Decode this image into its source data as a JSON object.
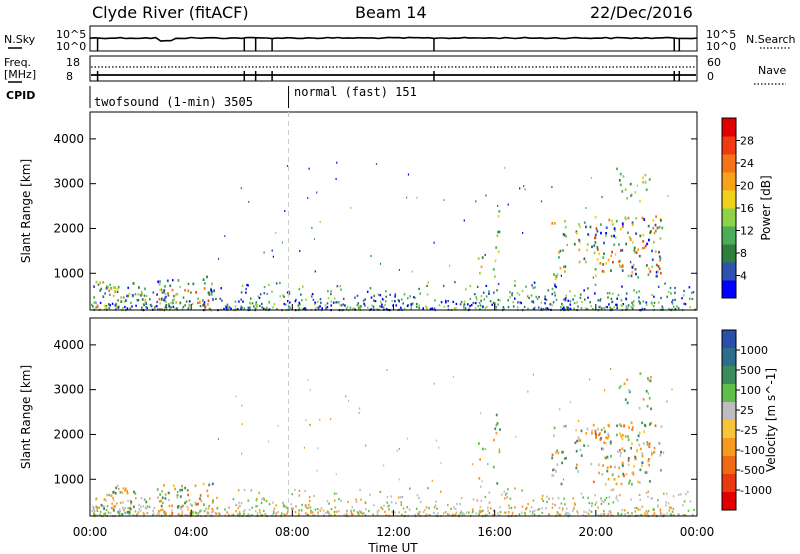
{
  "header": {
    "station": "Clyde River (fitACF)",
    "beam": "Beam 14",
    "date": "22/Dec/2016"
  },
  "status_panels": {
    "nsky_label": "N.Sky",
    "nsearch_label": "N.Search",
    "freq_label_line1": "Freq.",
    "freq_label_line2": "[MHz]",
    "nave_label": "Nave",
    "cpid_label": "CPID",
    "noise_ticks": [
      "10^5",
      "10^0"
    ],
    "freq_ticks": [
      "18",
      "8"
    ],
    "nave_ticks": [
      "60",
      "0"
    ],
    "cpid_segments": [
      {
        "label": "twofsound (1-min) 3505",
        "start_hour": 0,
        "end_hour": 7.85
      },
      {
        "label": "normal (fast) 151",
        "start_hour": 7.85,
        "end_hour": 24
      }
    ],
    "spike_hours": [
      0.3,
      6.1,
      6.55,
      7.2,
      13.6,
      23.1,
      23.3
    ]
  },
  "chart_data": [
    {
      "type": "heatmap",
      "name": "power",
      "ylabel": "Slant Range [km]",
      "xlabel": "",
      "yticks": [
        1000,
        2000,
        3000,
        4000
      ],
      "ylim": [
        180,
        4600
      ],
      "xlim_hours": [
        0,
        24
      ],
      "colorbar_label": "Power [dB]",
      "colorbar_ticks": [
        "28",
        "24",
        "20",
        "16",
        "12",
        "8",
        "4"
      ],
      "colorbar_colors": [
        "#0000ff",
        "#2d52b0",
        "#2e7e3f",
        "#4aae59",
        "#8fd24a",
        "#f2d11a",
        "#f7a31a",
        "#f5741a",
        "#f03a12",
        "#e00000"
      ],
      "clusters": [
        {
          "t0": 0.1,
          "t1": 2.2,
          "r0": 200,
          "r1": 850,
          "strength": 0.7
        },
        {
          "t0": 2.6,
          "t1": 4.9,
          "r0": 200,
          "r1": 950,
          "strength": 0.8
        },
        {
          "t0": 15.3,
          "t1": 15.5,
          "r0": 1000,
          "r1": 1900,
          "strength": 0.5
        },
        {
          "t0": 15.9,
          "t1": 16.2,
          "r0": 900,
          "r1": 2500,
          "strength": 0.5
        },
        {
          "t0": 18.2,
          "t1": 18.8,
          "r0": 900,
          "r1": 2300,
          "strength": 0.6
        },
        {
          "t0": 19.1,
          "t1": 19.8,
          "r0": 1200,
          "r1": 2200,
          "strength": 0.6
        },
        {
          "t0": 19.8,
          "t1": 22.6,
          "r0": 900,
          "r1": 2300,
          "strength": 0.85
        },
        {
          "t0": 20.8,
          "t1": 22.2,
          "r0": 2600,
          "r1": 3400,
          "strength": 0.4
        }
      ]
    },
    {
      "type": "heatmap",
      "name": "velocity",
      "ylabel": "Slant Range [km]",
      "xlabel": "Time UT",
      "yticks": [
        1000,
        2000,
        3000,
        4000
      ],
      "ylim": [
        180,
        4600
      ],
      "xlim_hours": [
        0,
        24
      ],
      "xticks": [
        "00:00",
        "04:00",
        "08:00",
        "12:00",
        "16:00",
        "20:00",
        "00:00"
      ],
      "colorbar_label": "Velocity [m s^-1]",
      "colorbar_ticks": [
        "1000",
        "500",
        "100",
        "25",
        "-25",
        "-100",
        "-500",
        "-1000"
      ],
      "colorbar_colors": [
        "#2b4ea8",
        "#2f6d8a",
        "#3b8c5c",
        "#5fbf4a",
        "#bdbdbd",
        "#f7c53a",
        "#f59a1c",
        "#f06a14",
        "#e83a0e",
        "#e00000"
      ],
      "clusters": [
        {
          "t0": 0.1,
          "t1": 2.2,
          "r0": 200,
          "r1": 850,
          "strength": 0.7
        },
        {
          "t0": 2.6,
          "t1": 4.9,
          "r0": 200,
          "r1": 950,
          "strength": 0.8
        },
        {
          "t0": 15.3,
          "t1": 15.5,
          "r0": 1000,
          "r1": 1900,
          "strength": 0.5
        },
        {
          "t0": 15.9,
          "t1": 16.2,
          "r0": 900,
          "r1": 2500,
          "strength": 0.5
        },
        {
          "t0": 18.2,
          "t1": 18.8,
          "r0": 900,
          "r1": 2300,
          "strength": 0.6
        },
        {
          "t0": 19.1,
          "t1": 19.8,
          "r0": 1200,
          "r1": 2200,
          "strength": 0.6
        },
        {
          "t0": 19.8,
          "t1": 22.6,
          "r0": 900,
          "r1": 2300,
          "strength": 0.85
        },
        {
          "t0": 20.8,
          "t1": 22.2,
          "r0": 2600,
          "r1": 3400,
          "strength": 0.4
        }
      ]
    }
  ],
  "mode_change_hour": 7.85
}
